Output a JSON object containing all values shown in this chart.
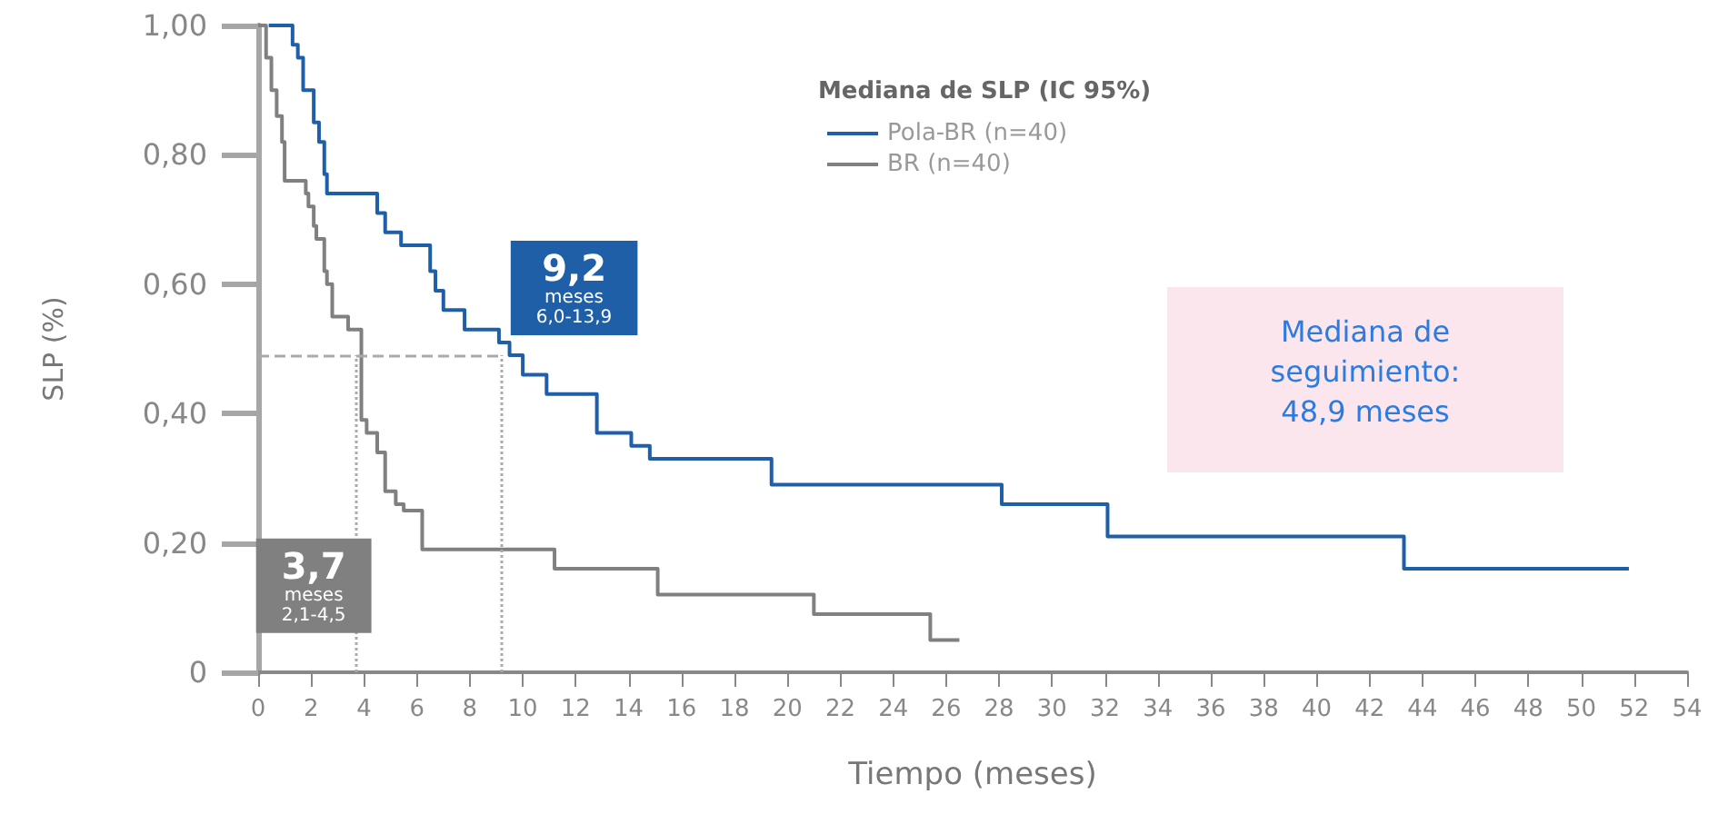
{
  "chart_data": {
    "type": "step",
    "xlabel": "Tiempo (meses)",
    "ylabel": "SLP (%)",
    "legend_title": "Mediana de SLP (IC 95%)",
    "legend": "top",
    "xlim": [
      0,
      54
    ],
    "xticks": [
      0,
      2,
      4,
      6,
      8,
      10,
      12,
      14,
      16,
      18,
      20,
      22,
      24,
      26,
      28,
      30,
      32,
      34,
      36,
      38,
      40,
      42,
      44,
      46,
      48,
      50,
      52,
      54
    ],
    "ylim": [
      0,
      1
    ],
    "yticks": [
      {
        "value": 0,
        "label": "0"
      },
      {
        "value": 0.2,
        "label": "0,20"
      },
      {
        "value": 0.4,
        "label": "0,40"
      },
      {
        "value": 0.6,
        "label": "0,60"
      },
      {
        "value": 0.8,
        "label": "0,80"
      },
      {
        "value": 1,
        "label": "1,00"
      }
    ],
    "grid": false,
    "series": [
      {
        "name": "Pola-BR (n=40)",
        "color": "#1f5fa8",
        "x": [
          0.4,
          1.3,
          1.5,
          1.7,
          2.1,
          2.3,
          2.5,
          2.6,
          4.5,
          4.8,
          5.4,
          6.5,
          6.7,
          7.0,
          7.8,
          9.1,
          9.5,
          10.0,
          10.9,
          12.8,
          14.1,
          14.8,
          19.4,
          28.1,
          32.1,
          43.3,
          51.8
        ],
        "values": [
          1.0,
          0.97,
          0.95,
          0.9,
          0.85,
          0.82,
          0.77,
          0.74,
          0.71,
          0.68,
          0.66,
          0.62,
          0.59,
          0.56,
          0.53,
          0.51,
          0.49,
          0.46,
          0.43,
          0.37,
          0.35,
          0.33,
          0.29,
          0.26,
          0.21,
          0.16,
          0.16
        ]
      },
      {
        "name": "BR (n=40)",
        "color": "#808080",
        "x": [
          0,
          0.3,
          0.5,
          0.7,
          0.9,
          1.0,
          1.8,
          1.9,
          2.1,
          2.2,
          2.5,
          2.6,
          2.8,
          3.4,
          3.9,
          4.1,
          4.5,
          4.8,
          5.2,
          5.5,
          6.2,
          11.2,
          15.1,
          21.0,
          25.4,
          26.5
        ],
        "values": [
          1.0,
          0.95,
          0.9,
          0.86,
          0.82,
          0.76,
          0.74,
          0.72,
          0.69,
          0.67,
          0.62,
          0.6,
          0.55,
          0.53,
          0.39,
          0.37,
          0.34,
          0.28,
          0.26,
          0.25,
          0.19,
          0.16,
          0.12,
          0.09,
          0.05,
          0.05
        ]
      }
    ],
    "ref_lines": [
      {
        "axis": "y",
        "value": 0.49,
        "color": "#aaaaaa",
        "line_style": "dashed"
      },
      {
        "axis": "x",
        "value": 3.7,
        "color": "#aaaaaa",
        "line_style": "dotted"
      },
      {
        "axis": "x",
        "value": 9.2,
        "color": "#aaaaaa",
        "line_style": "dotted"
      }
    ],
    "annotations": [
      {
        "text": "9,2\nmeses\n6,0-13,9",
        "x": 9.2,
        "y": 0.49
      },
      {
        "text": "3,7\nmeses\n2,1-4,5",
        "x": 3.7,
        "y": 0.19
      },
      "Mediana de seguimiento:\n48,9 meses"
    ]
  }
}
